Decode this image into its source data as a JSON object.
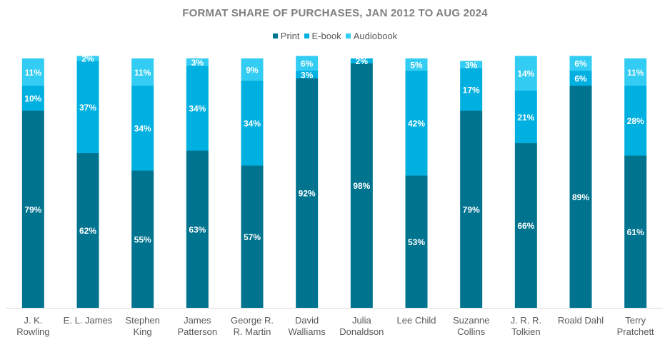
{
  "chart_data": {
    "type": "bar",
    "stacked": true,
    "percent": true,
    "title": "FORMAT SHARE OF PURCHASES, JAN 2012 TO AUG 2024",
    "legend_position": "top",
    "grid": false,
    "ylim": [
      0,
      100
    ],
    "categories": [
      [
        "J. K.",
        "Rowling"
      ],
      [
        "E. L. James"
      ],
      [
        "Stephen",
        "King"
      ],
      [
        "James",
        "Patterson"
      ],
      [
        "George R.",
        "R. Martin"
      ],
      [
        "David",
        "Walliams"
      ],
      [
        "Julia",
        "Donaldson"
      ],
      [
        "Lee Child"
      ],
      [
        "Suzanne",
        "Collins"
      ],
      [
        "J. R. R.",
        "Tolkien"
      ],
      [
        "Roald Dahl"
      ],
      [
        "Terry",
        "Pratchett"
      ]
    ],
    "series": [
      {
        "name": "Print",
        "color": "#00738f",
        "values": [
          79,
          62,
          55,
          63,
          57,
          92,
          98,
          53,
          79,
          66,
          89,
          61
        ],
        "labels": [
          "79%",
          "62%",
          "55%",
          "63%",
          "57%",
          "92%",
          "98%",
          "53%",
          "79%",
          "66%",
          "89%",
          "61%"
        ]
      },
      {
        "name": "E-book",
        "color": "#00b0e0",
        "values": [
          10,
          37,
          34,
          34,
          34,
          3,
          2,
          42,
          17,
          21,
          6,
          28
        ],
        "labels": [
          "10%",
          "37%",
          "34%",
          "34%",
          "34%",
          "3%",
          "2%",
          "42%",
          "17%",
          "21%",
          "6%",
          "28%"
        ]
      },
      {
        "name": "Audiobook",
        "color": "#33ccf2",
        "values": [
          11,
          2,
          11,
          3,
          9,
          6,
          0,
          5,
          3,
          14,
          6,
          11
        ],
        "labels": [
          "11%",
          "2%",
          "11%",
          "3%",
          "9%",
          "6%",
          "",
          "5%",
          "3%",
          "14%",
          "6%",
          "11%"
        ]
      }
    ]
  }
}
